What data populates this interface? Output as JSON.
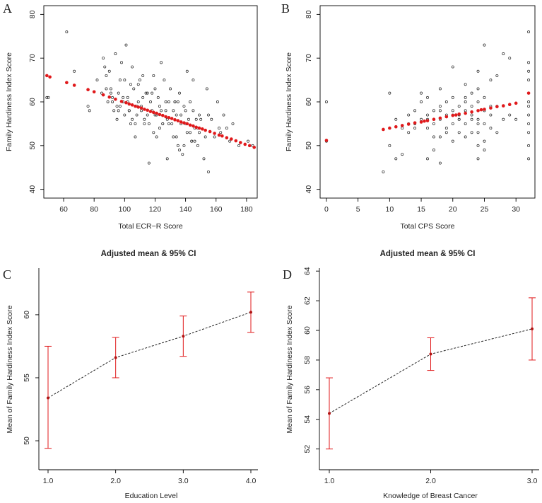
{
  "figure": {
    "colors": {
      "points": "#222222",
      "fit": "#e0191b",
      "ci": "#e0191b",
      "line": "#222222"
    }
  },
  "chart_data": [
    {
      "panel": "A",
      "type": "scatter",
      "title": "",
      "xlabel": "Total ECR−R Score",
      "ylabel": "Family Hardiness Index Score",
      "xlim": [
        47,
        187
      ],
      "ylim": [
        38,
        82
      ],
      "xticks": [
        60,
        80,
        100,
        120,
        140,
        160,
        180
      ],
      "yticks": [
        40,
        50,
        60,
        70,
        80
      ],
      "observed": {
        "x": [
          49,
          50,
          62,
          67,
          76,
          77,
          82,
          85,
          86,
          87,
          88,
          89,
          90,
          91,
          92,
          93,
          94,
          95,
          96,
          97,
          98,
          99,
          100,
          101,
          102,
          103,
          104,
          105,
          106,
          107,
          108,
          109,
          110,
          111,
          112,
          113,
          114,
          115,
          116,
          117,
          118,
          119,
          120,
          121,
          122,
          123,
          124,
          125,
          126,
          127,
          128,
          129,
          130,
          131,
          132,
          133,
          134,
          135,
          136,
          137,
          138,
          139,
          140,
          141,
          142,
          143,
          144,
          145,
          146,
          147,
          148,
          149,
          150,
          152,
          154,
          155,
          157,
          159,
          161,
          163,
          165,
          167,
          169,
          171,
          175,
          181,
          184,
          88,
          92,
          96,
          100,
          104,
          108,
          112,
          116,
          120,
          124,
          128,
          132,
          136,
          140,
          144,
          148,
          95,
          105,
          115,
          125,
          135,
          145,
          155,
          103,
          113,
          123,
          133,
          143,
          153,
          99,
          109,
          119,
          129,
          139,
          149,
          102,
          118,
          134,
          146,
          91,
          107,
          127,
          141,
          162,
          137,
          121,
          111,
          97
        ],
        "y": [
          61,
          61,
          76,
          67,
          59,
          58,
          65,
          62,
          70,
          68,
          66,
          60,
          67,
          63,
          61,
          58,
          71,
          56,
          62,
          59,
          69,
          60,
          65,
          73,
          61,
          58,
          55,
          68,
          63,
          52,
          57,
          60,
          65,
          58,
          66,
          55,
          62,
          57,
          46,
          60,
          58,
          66,
          63,
          57,
          61,
          59,
          69,
          55,
          65,
          58,
          47,
          60,
          63,
          55,
          58,
          60,
          57,
          50,
          62,
          55,
          48,
          59,
          55,
          67,
          56,
          60,
          51,
          58,
          54,
          56,
          50,
          53,
          56,
          47,
          63,
          44,
          56,
          52,
          60,
          53,
          57,
          54,
          51,
          55,
          50,
          51,
          50,
          63,
          60,
          58,
          57,
          64,
          59,
          61,
          55,
          57,
          58,
          56,
          52,
          49,
          58,
          51,
          54,
          59,
          56,
          62,
          55,
          60,
          65,
          57,
          58,
          56,
          54,
          60,
          53,
          52,
          61,
          64,
          53,
          55,
          50,
          57,
          60,
          62,
          52,
          51,
          62,
          55,
          60,
          53,
          54,
          57,
          52,
          59,
          65
        ]
      },
      "fit": {
        "x": [
          49,
          51,
          62,
          67,
          76,
          80,
          86,
          90,
          94,
          98,
          101,
          103,
          105,
          107,
          109,
          111,
          113,
          115,
          117,
          119,
          121,
          123,
          125,
          127,
          129,
          131,
          133,
          135,
          137,
          139,
          141,
          143,
          145,
          147,
          149,
          151,
          153,
          156,
          159,
          162,
          164,
          167,
          170,
          173,
          176,
          179,
          182,
          185
        ],
        "y": [
          66,
          65.7,
          64.4,
          63.8,
          62.8,
          62.3,
          61.6,
          61.1,
          60.6,
          60.1,
          59.8,
          59.5,
          59.3,
          59,
          58.8,
          58.6,
          58.3,
          58.1,
          57.8,
          57.6,
          57.4,
          57.1,
          56.9,
          56.6,
          56.4,
          56.2,
          55.9,
          55.7,
          55.4,
          55.2,
          55,
          54.7,
          54.5,
          54.2,
          54,
          53.8,
          53.5,
          53.2,
          52.8,
          52.4,
          52.2,
          51.8,
          51.5,
          51.1,
          50.7,
          50.3,
          50,
          49.6
        ]
      }
    },
    {
      "panel": "B",
      "type": "scatter",
      "title": "",
      "xlabel": "Total CPS Score",
      "ylabel": "Family Hardiness Index Score",
      "xlim": [
        -1,
        33
      ],
      "ylim": [
        38,
        82
      ],
      "xticks": [
        0,
        5,
        10,
        15,
        20,
        25,
        30
      ],
      "yticks": [
        40,
        50,
        60,
        70,
        80
      ],
      "observed": {
        "x": [
          0,
          0,
          9,
          10,
          10,
          11,
          12,
          12,
          13,
          13,
          14,
          14,
          15,
          15,
          15,
          16,
          16,
          16,
          16,
          17,
          17,
          17,
          18,
          18,
          18,
          18,
          18,
          19,
          19,
          19,
          20,
          20,
          20,
          20,
          20,
          21,
          21,
          21,
          21,
          22,
          22,
          22,
          22,
          22,
          23,
          23,
          23,
          23,
          24,
          24,
          24,
          24,
          24,
          24,
          24,
          25,
          25,
          25,
          25,
          25,
          26,
          26,
          26,
          27,
          27,
          28,
          28,
          29,
          29,
          30,
          32,
          32,
          32,
          32,
          32,
          32,
          32,
          32,
          32,
          32,
          32,
          32,
          14,
          16,
          18,
          20,
          22,
          24,
          26,
          11,
          13,
          17,
          19,
          21,
          23,
          25,
          27
        ],
        "y": [
          60,
          51,
          44,
          62,
          50,
          47,
          48,
          54,
          53,
          57,
          55,
          58,
          56,
          60,
          62,
          47,
          54,
          57,
          61,
          49,
          55,
          58,
          46,
          52,
          56,
          59,
          63,
          54,
          57,
          60,
          51,
          55,
          58,
          61,
          68,
          53,
          56,
          59,
          57,
          52,
          55,
          58,
          60,
          64,
          53,
          56,
          59,
          62,
          47,
          50,
          53,
          56,
          60,
          63,
          67,
          51,
          55,
          58,
          61,
          73,
          54,
          57,
          65,
          53,
          59,
          56,
          71,
          70,
          57,
          56,
          76,
          69,
          67,
          65,
          62,
          59,
          57,
          55,
          53,
          50,
          47,
          60,
          54,
          56,
          58,
          57,
          61,
          55,
          59,
          56,
          55,
          52,
          53,
          56,
          57,
          49,
          66
        ]
      },
      "fit": {
        "x": [
          0,
          9,
          10,
          11,
          12,
          13,
          14,
          15,
          15.5,
          16,
          17,
          18,
          19,
          20,
          20.5,
          21,
          22,
          23,
          24,
          24.5,
          25,
          26,
          27,
          28,
          29,
          30,
          32
        ],
        "y": [
          51.2,
          53.7,
          54,
          54.3,
          54.6,
          54.9,
          55.2,
          55.4,
          55.6,
          55.7,
          56,
          56.3,
          56.6,
          56.9,
          57,
          57.2,
          57.4,
          57.7,
          58,
          58.2,
          58.3,
          58.6,
          58.9,
          59.1,
          59.4,
          59.7,
          62
        ]
      }
    },
    {
      "panel": "C",
      "type": "line",
      "title": "Adjusted mean & 95% CI",
      "xlabel": "Education Level",
      "ylabel": "Mean of Family Hardiness Index Score",
      "categories": [
        "1.0",
        "2.0",
        "3.0",
        "4.0"
      ],
      "x": [
        1,
        2,
        3,
        4
      ],
      "mean": [
        53.4,
        56.6,
        58.3,
        60.2
      ],
      "ci_lower": [
        49.4,
        55.0,
        56.7,
        58.6
      ],
      "ci_upper": [
        57.5,
        58.2,
        59.9,
        61.8
      ],
      "xlim": [
        0.95,
        4.05
      ],
      "ylim": [
        47.7,
        63.7
      ],
      "yticks": [
        50,
        55,
        60
      ]
    },
    {
      "panel": "D",
      "type": "line",
      "title": "Adjusted mean & 95% CI",
      "xlabel": "Knowledge of Breast Cancer",
      "ylabel": "Mean of Family Hardiness Index Score",
      "categories": [
        "1.0",
        "2.0",
        "3.0"
      ],
      "x": [
        1,
        2,
        3
      ],
      "mean": [
        54.4,
        58.4,
        60.1
      ],
      "ci_lower": [
        52.0,
        57.3,
        58.0
      ],
      "ci_upper": [
        56.8,
        59.5,
        62.2
      ],
      "xlim": [
        0.97,
        3.03
      ],
      "ylim": [
        50.6,
        64.2
      ],
      "yticks": [
        52,
        54,
        56,
        58,
        60,
        62,
        64
      ]
    }
  ]
}
